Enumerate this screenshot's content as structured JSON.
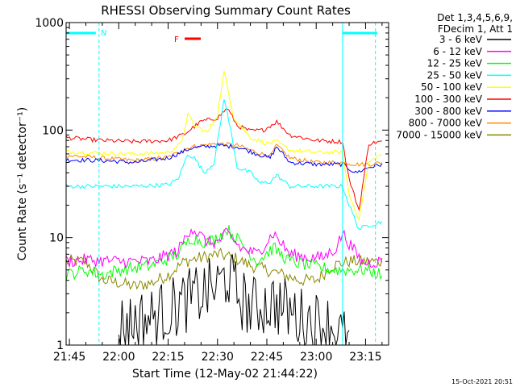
{
  "chart_data": {
    "type": "line",
    "title": "RHESSI Observing Summary Count Rates",
    "xlabel": "Start Time (12-May-02 21:44:22)",
    "ylabel": "Count Rate (s⁻¹ detector⁻¹)",
    "y_scale": "log",
    "ylim": [
      1,
      1000
    ],
    "y_ticks": [
      1,
      10,
      100,
      1000
    ],
    "y_tick_labels": [
      "1",
      "10",
      "100",
      "1000"
    ],
    "xlim": [
      "21:44",
      "23:22"
    ],
    "x_ticks": [
      "21:45",
      "22:00",
      "22:15",
      "22:30",
      "22:45",
      "23:00",
      "23:15"
    ],
    "grid": false,
    "legend_position": "right",
    "legend_header": [
      "Det 1,3,4,5,6,9,",
      "FDecim 1, Att 1"
    ],
    "flare_flag_label": "F",
    "night_flag_label": "N",
    "timestamp": "15-Oct-2021 20:51",
    "vertical_markers": [
      "21:54",
      "23:08",
      "23:18"
    ],
    "series": [
      {
        "name": "3 - 6 keV",
        "color": "#000000",
        "x": [
          "22:00",
          "22:10",
          "22:20",
          "22:25",
          "22:30",
          "22:33",
          "22:36",
          "22:40",
          "22:47",
          "22:55",
          "23:05",
          "23:10"
        ],
        "y": [
          1.5,
          1.8,
          2.5,
          3.0,
          3.5,
          4.5,
          3.0,
          2.2,
          2.5,
          1.8,
          1.5,
          1.0
        ]
      },
      {
        "name": "6 - 12 keV",
        "color": "#ff00ff",
        "x": [
          "21:44",
          "21:50",
          "22:00",
          "22:10",
          "22:18",
          "22:22",
          "22:27",
          "22:30",
          "22:33",
          "22:37",
          "22:42",
          "22:47",
          "22:52",
          "22:58",
          "23:02",
          "23:06",
          "23:08",
          "23:14",
          "23:20"
        ],
        "y": [
          6,
          6.2,
          6,
          6,
          7.5,
          12.5,
          9,
          9,
          11,
          8,
          7,
          11,
          7,
          6.5,
          6.5,
          8,
          11,
          5.8,
          6
        ]
      },
      {
        "name": "12 - 25 keV",
        "color": "#00ff00",
        "x": [
          "21:44",
          "21:50",
          "21:55",
          "22:00",
          "22:10",
          "22:18",
          "22:22",
          "22:27",
          "22:30",
          "22:33",
          "22:37",
          "22:42",
          "22:47",
          "22:52",
          "22:58",
          "23:05",
          "23:10",
          "23:15",
          "23:20"
        ],
        "y": [
          4.5,
          5,
          4.5,
          5,
          5.5,
          7,
          10,
          9,
          10,
          12,
          9,
          6,
          8,
          6,
          5.5,
          5,
          5,
          5,
          4.5
        ]
      },
      {
        "name": "25 - 50 keV",
        "color": "#00ffff",
        "x": [
          "21:44",
          "21:55",
          "22:05",
          "22:15",
          "22:18",
          "22:21",
          "22:23",
          "22:26",
          "22:29",
          "22:31",
          "22:32",
          "22:34",
          "22:36",
          "22:40",
          "22:43",
          "22:46",
          "22:48",
          "22:52",
          "23:00",
          "23:08",
          "23:10",
          "23:13",
          "23:16",
          "23:20"
        ],
        "y": [
          30,
          30,
          30,
          31,
          35,
          60,
          55,
          40,
          50,
          120,
          200,
          100,
          45,
          40,
          32,
          33,
          38,
          30,
          30,
          30,
          20,
          12,
          13,
          14
        ]
      },
      {
        "name": "50 - 100 keV",
        "color": "#ffff00",
        "x": [
          "21:44",
          "21:55",
          "22:05",
          "22:15",
          "22:19",
          "22:21",
          "22:23",
          "22:27",
          "22:30",
          "22:32",
          "22:35",
          "22:40",
          "22:45",
          "22:48",
          "22:52",
          "23:00",
          "23:08",
          "23:10",
          "23:13",
          "23:16",
          "23:20"
        ],
        "y": [
          63,
          61,
          60,
          62,
          75,
          140,
          110,
          95,
          140,
          350,
          130,
          85,
          75,
          78,
          65,
          62,
          62,
          25,
          15,
          50,
          60
        ]
      },
      {
        "name": "100 - 300 keV",
        "color": "#ff0000",
        "x": [
          "21:44",
          "21:55",
          "22:05",
          "22:15",
          "22:20",
          "22:25",
          "22:30",
          "22:33",
          "22:36",
          "22:40",
          "22:44",
          "22:48",
          "22:52",
          "23:00",
          "23:08",
          "23:10",
          "23:13",
          "23:16",
          "23:20"
        ],
        "y": [
          85,
          80,
          78,
          80,
          92,
          120,
          130,
          160,
          110,
          98,
          100,
          120,
          90,
          80,
          78,
          35,
          18,
          75,
          78
        ]
      },
      {
        "name": "300 - 800 keV",
        "color": "#0000ff",
        "x": [
          "21:44",
          "21:55",
          "22:05",
          "22:15",
          "22:22",
          "22:30",
          "22:36",
          "22:42",
          "22:46",
          "22:48",
          "22:52",
          "23:00",
          "23:08",
          "23:12",
          "23:16",
          "23:20"
        ],
        "y": [
          53,
          52,
          50,
          55,
          68,
          72,
          70,
          60,
          55,
          70,
          50,
          48,
          48,
          40,
          45,
          48
        ]
      },
      {
        "name": "800 - 7000 keV",
        "color": "#ff8800",
        "x": [
          "21:44",
          "21:55",
          "22:05",
          "22:15",
          "22:22",
          "22:30",
          "22:36",
          "22:42",
          "22:46",
          "22:48",
          "22:52",
          "23:00",
          "23:08",
          "23:12",
          "23:16",
          "23:20"
        ],
        "y": [
          58,
          55,
          52,
          56,
          70,
          75,
          72,
          62,
          57,
          72,
          55,
          50,
          50,
          48,
          48,
          50
        ]
      },
      {
        "name": "7000 - 15000 keV",
        "color": "#888800",
        "x": [
          "21:44",
          "21:50",
          "21:55",
          "22:00",
          "22:05",
          "22:10",
          "22:15",
          "22:20",
          "22:25",
          "22:30",
          "22:35",
          "22:40",
          "22:45",
          "22:50",
          "22:55",
          "23:00",
          "23:05",
          "23:10",
          "23:15",
          "23:20"
        ],
        "y": [
          6,
          6,
          4,
          3.8,
          3.5,
          3.8,
          4.5,
          6,
          6.5,
          7,
          6.5,
          5.5,
          5,
          4.5,
          4,
          4,
          5.5,
          6,
          6,
          6
        ]
      }
    ]
  }
}
